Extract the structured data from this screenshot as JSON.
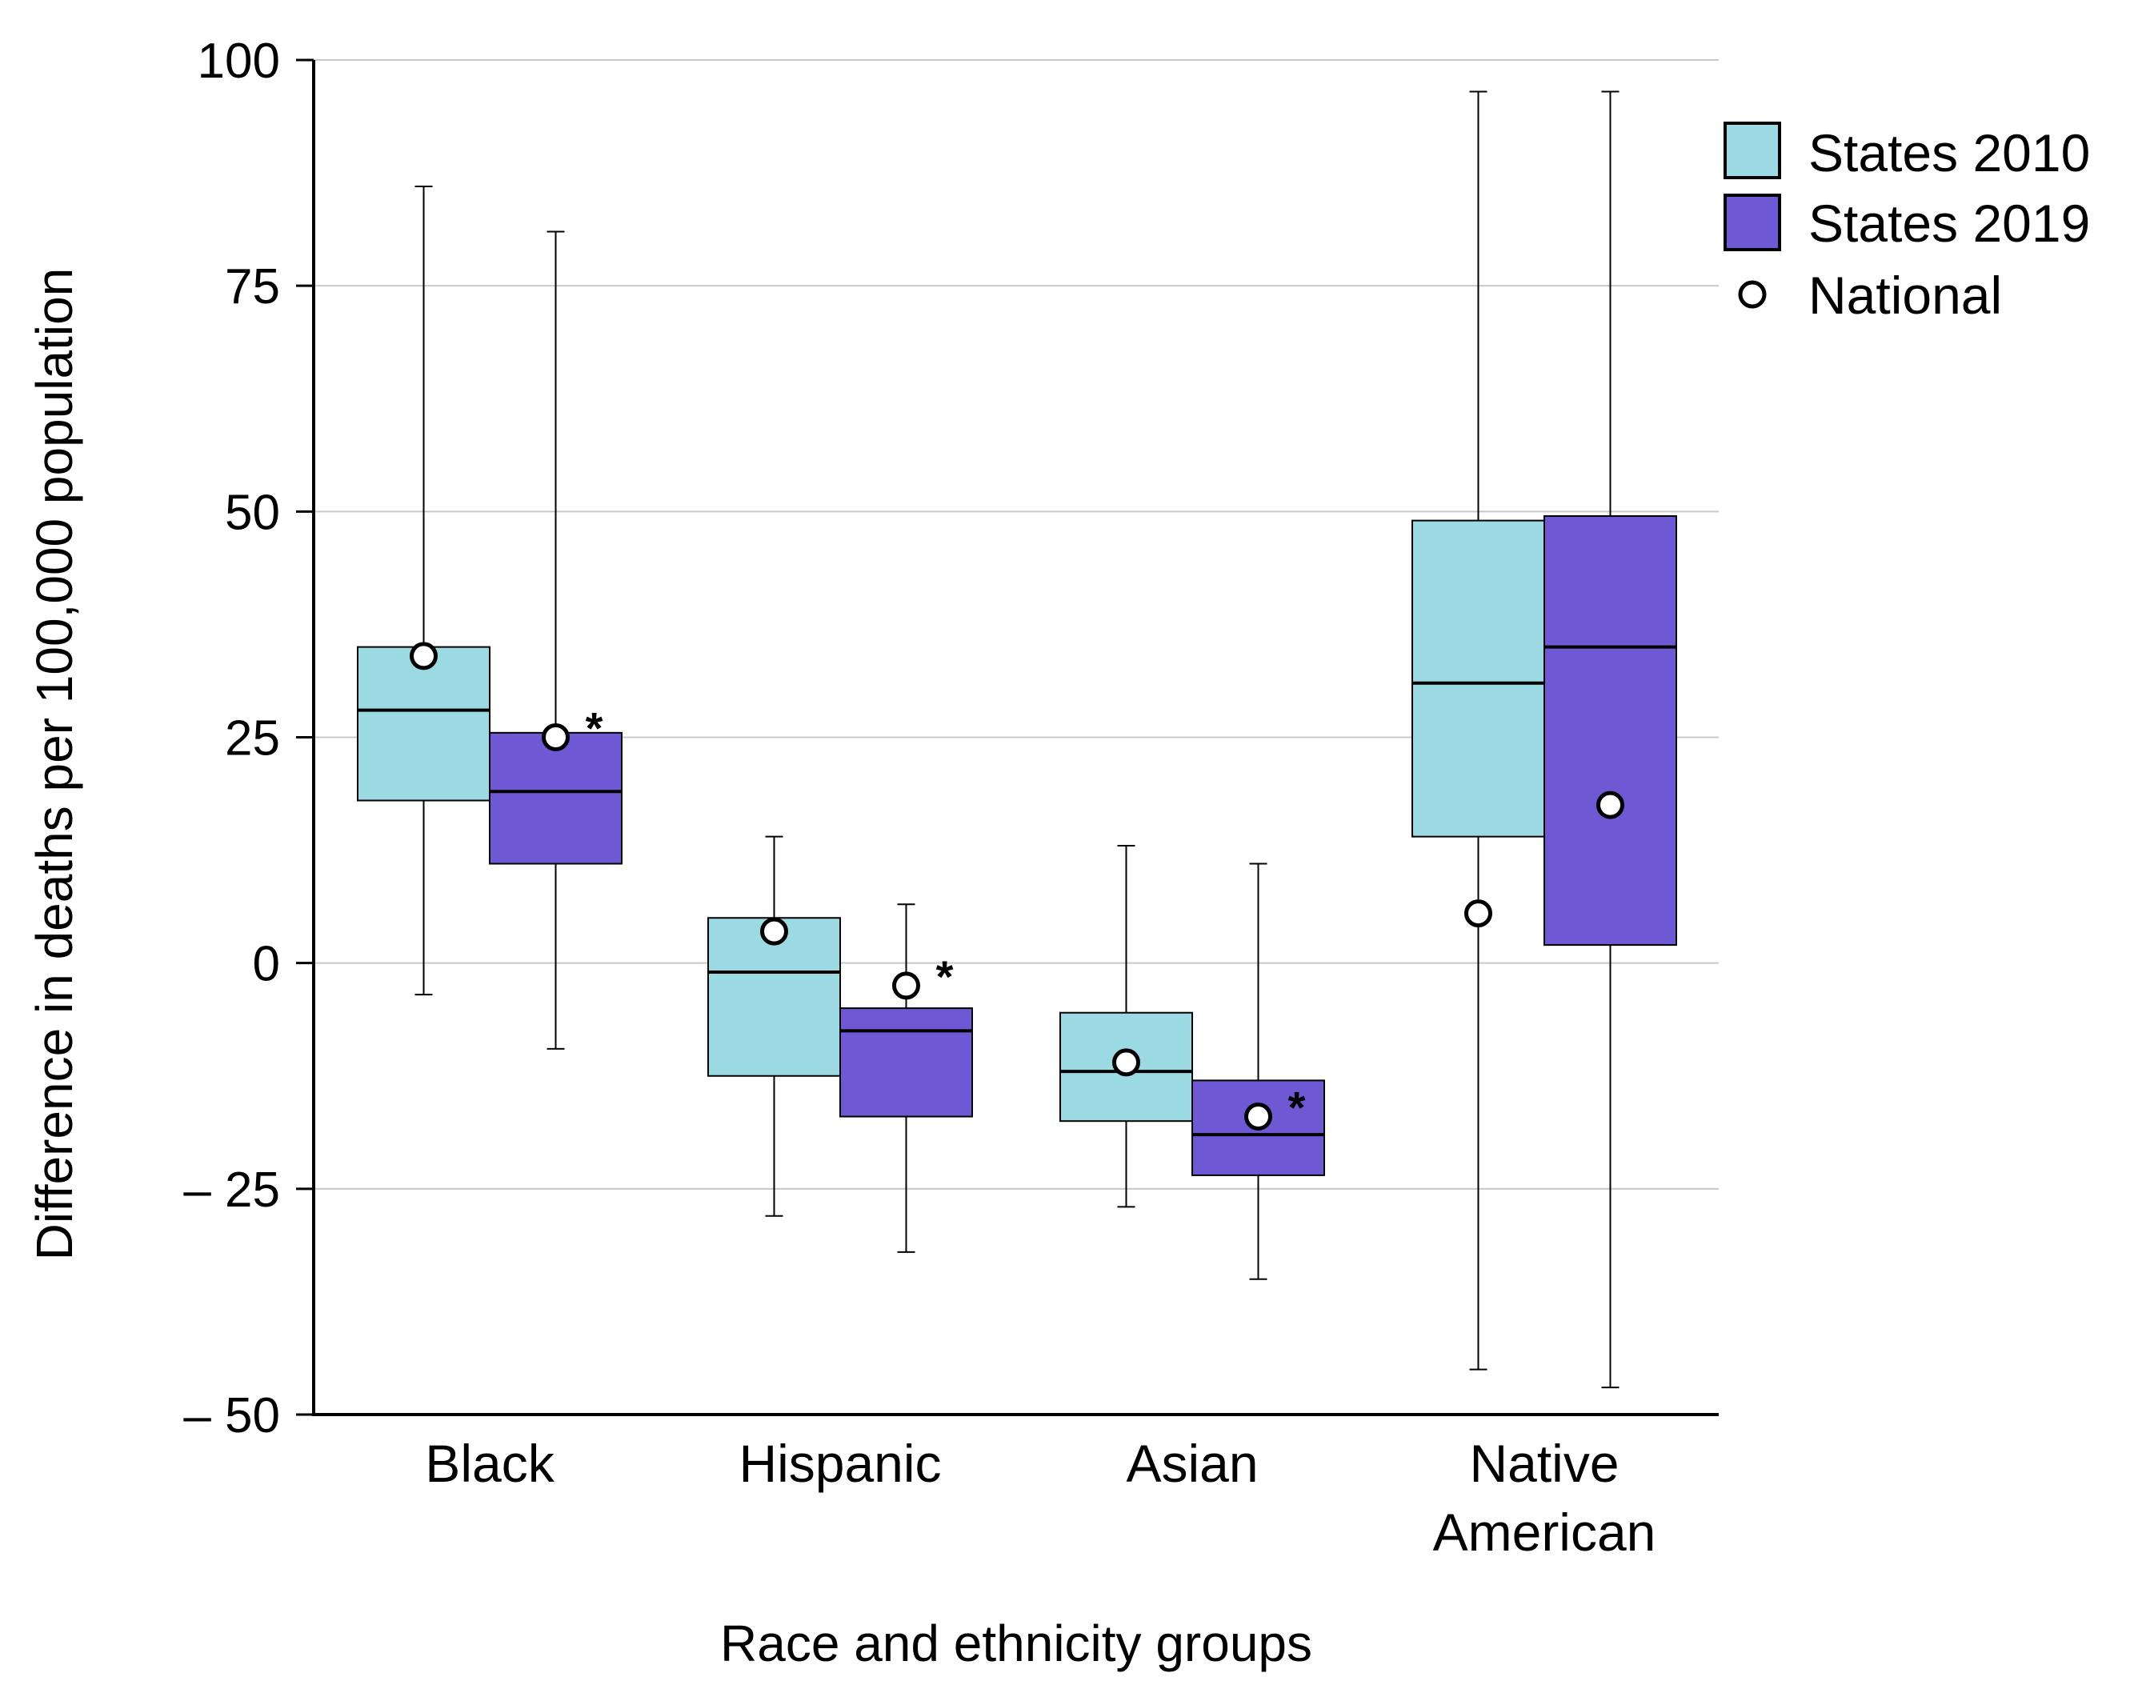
{
  "chart_data": {
    "type": "boxplot",
    "title": "",
    "xlabel": "Race and ethnicity groups",
    "ylabel": "Difference in deaths per 100,000 population",
    "ylim": [
      -50,
      100
    ],
    "yticks": [
      100,
      75,
      50,
      25,
      0,
      -25,
      -50
    ],
    "ytick_labels": [
      "100",
      "75",
      "50",
      "25",
      "0",
      "– 25",
      "– 50"
    ],
    "grid": true,
    "legend_position": "top-right",
    "categories": [
      {
        "label_lines": [
          "Black"
        ]
      },
      {
        "label_lines": [
          "Hispanic"
        ]
      },
      {
        "label_lines": [
          "Asian"
        ]
      },
      {
        "label_lines": [
          "Native",
          "American"
        ]
      }
    ],
    "series": [
      {
        "name": "States 2010",
        "color": "#9bd9e3",
        "boxes": [
          {
            "min": -3.5,
            "q1": 18,
            "median": 28,
            "q3": 35,
            "max": 86
          },
          {
            "min": -28,
            "q1": -12.5,
            "median": -1,
            "q3": 5,
            "max": 14
          },
          {
            "min": -27,
            "q1": -17.5,
            "median": -12,
            "q3": -5.5,
            "max": 13
          },
          {
            "min": -45,
            "q1": 14,
            "median": 31,
            "q3": 49,
            "max": 96.5
          }
        ]
      },
      {
        "name": "States 2019",
        "color": "#6f58d4",
        "boxes": [
          {
            "min": -9.5,
            "q1": 11,
            "median": 19,
            "q3": 25.5,
            "max": 81
          },
          {
            "min": -32,
            "q1": -17,
            "median": -7.5,
            "q3": -5,
            "max": 6.5
          },
          {
            "min": -35,
            "q1": -23.5,
            "median": -19,
            "q3": -13,
            "max": 11
          },
          {
            "min": -47,
            "q1": 2,
            "median": 35,
            "q3": 49.5,
            "max": 96.5
          }
        ]
      }
    ],
    "national": {
      "name": "National",
      "values_2010": [
        34,
        3.5,
        -11,
        5.5
      ],
      "values_2019": [
        25,
        -2.5,
        -17,
        17.5
      ]
    },
    "significance_marker": "*",
    "significant_2019": [
      true,
      true,
      true,
      false
    ]
  }
}
